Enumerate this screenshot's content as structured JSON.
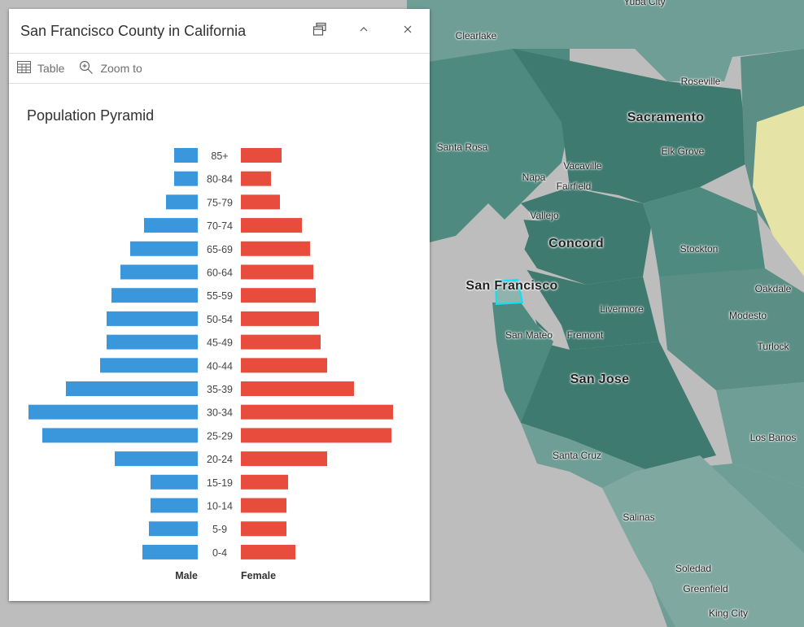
{
  "popup": {
    "title": "San Francisco County in California",
    "buttons": {
      "dock": "dock-icon",
      "collapse": "chevron-up-icon",
      "close": "close-icon"
    },
    "toolbar": [
      {
        "label": "Table",
        "icon": "table-icon"
      },
      {
        "label": "Zoom to",
        "icon": "zoom-in-icon"
      }
    ]
  },
  "chart_data": {
    "type": "bar",
    "title": "Population Pyramid",
    "orientation": "horizontal-pyramid",
    "categories": [
      "85+",
      "80-84",
      "75-79",
      "70-74",
      "65-69",
      "60-64",
      "55-59",
      "50-54",
      "45-49",
      "40-44",
      "35-39",
      "30-34",
      "25-29",
      "20-24",
      "15-19",
      "10-14",
      "5-9",
      "0-4"
    ],
    "series": [
      {
        "name": "Male",
        "color": "#3b97dc",
        "values": [
          29,
          29,
          39,
          66,
          83,
          95,
          106,
          112,
          112,
          120,
          162,
          208,
          191,
          102,
          58,
          58,
          60,
          68
        ]
      },
      {
        "name": "Female",
        "color": "#e84c3d",
        "values": [
          50,
          37,
          48,
          75,
          85,
          89,
          92,
          96,
          98,
          106,
          139,
          187,
          185,
          106,
          58,
          56,
          56,
          67
        ]
      }
    ],
    "axis_values_shown": false,
    "grid": false
  },
  "map": {
    "labels": [
      {
        "text": "Yuba City",
        "big": false
      },
      {
        "text": "Clearlake",
        "big": false
      },
      {
        "text": "Roseville",
        "big": false
      },
      {
        "text": "Sacramento",
        "big": true
      },
      {
        "text": "Santa Rosa",
        "big": false
      },
      {
        "text": "Elk Grove",
        "big": false
      },
      {
        "text": "Vacaville",
        "big": false
      },
      {
        "text": "Napa",
        "big": false
      },
      {
        "text": "Fairfield",
        "big": false
      },
      {
        "text": "Vallejo",
        "big": false
      },
      {
        "text": "Concord",
        "big": true
      },
      {
        "text": "Stockton",
        "big": false
      },
      {
        "text": "San Francisco",
        "big": true
      },
      {
        "text": "Oakdale",
        "big": false
      },
      {
        "text": "Livermore",
        "big": false
      },
      {
        "text": "Modesto",
        "big": false
      },
      {
        "text": "San Mateo",
        "big": false
      },
      {
        "text": "Fremont",
        "big": false
      },
      {
        "text": "Turlock",
        "big": false
      },
      {
        "text": "San Jose",
        "big": true
      },
      {
        "text": "Los Banos",
        "big": false
      },
      {
        "text": "Santa Cruz",
        "big": false
      },
      {
        "text": "Salinas",
        "big": false
      },
      {
        "text": "Soledad",
        "big": false
      },
      {
        "text": "Greenfield",
        "big": false
      },
      {
        "text": "King City",
        "big": false
      }
    ],
    "colors": {
      "water": "#bdbdbd",
      "land_dark": "#3f7a70",
      "land_mid": "#5b8f86",
      "land_light": "#7fa8a0",
      "highlight": "#00e5ff",
      "low": "#e5e3a6"
    }
  }
}
